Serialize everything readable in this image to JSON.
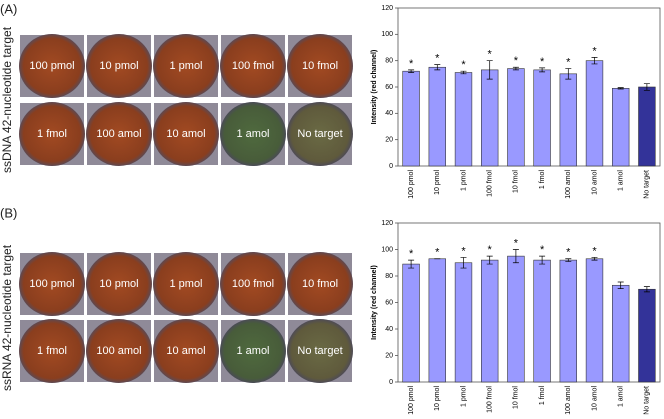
{
  "panels": [
    {
      "label": "(A)",
      "side_label": "ssDNA 42-nucleotide target"
    },
    {
      "label": "(B)",
      "side_label": "ssRNA 42-nucleotide target"
    }
  ],
  "chart_data": [
    {
      "type": "bar",
      "ylabel": "Intensity (red channel)",
      "categories": [
        "100 pmol",
        "10 pmol",
        "1 pmol",
        "100 fmol",
        "10 fmol",
        "1 fmol",
        "100 amol",
        "10 amol",
        "1 amol",
        "No target"
      ],
      "values": [
        72,
        75,
        71,
        73,
        74,
        73,
        70,
        80,
        59,
        60
      ],
      "errors": [
        1,
        2,
        1,
        7,
        1,
        1.5,
        4,
        2.5,
        0.5,
        2.5
      ],
      "markers": [
        "*",
        "*",
        "*",
        "*",
        "*",
        "*",
        "*",
        "*",
        null,
        null
      ],
      "colors": [
        "#9999ff",
        "#9999ff",
        "#9999ff",
        "#9999ff",
        "#9999ff",
        "#9999ff",
        "#9999ff",
        "#9999ff",
        "#9999ff",
        "#333399"
      ],
      "ylim": [
        0,
        120
      ],
      "yticks": [
        0,
        20,
        40,
        60,
        80,
        100,
        120
      ],
      "grid": false
    },
    {
      "type": "bar",
      "ylabel": "Intensity (red channel)",
      "categories": [
        "100 pmol",
        "10 pmol",
        "1 pmol",
        "100 fmol",
        "10 fmol",
        "1 fmol",
        "100 amol",
        "10 amol",
        "1 amol",
        "No target"
      ],
      "values": [
        89,
        93,
        90,
        92,
        95,
        92,
        92,
        93,
        73,
        70
      ],
      "errors": [
        3,
        0,
        4,
        3,
        5,
        3,
        1,
        1,
        2.5,
        2
      ],
      "markers": [
        "*",
        "*",
        "*",
        "*",
        "*",
        "*",
        "*",
        "*",
        null,
        null
      ],
      "colors": [
        "#9999ff",
        "#9999ff",
        "#9999ff",
        "#9999ff",
        "#9999ff",
        "#9999ff",
        "#9999ff",
        "#9999ff",
        "#9999ff",
        "#333399"
      ],
      "ylim": [
        0,
        120
      ],
      "yticks": [
        0,
        20,
        40,
        60,
        80,
        100,
        120
      ],
      "grid": false
    }
  ]
}
